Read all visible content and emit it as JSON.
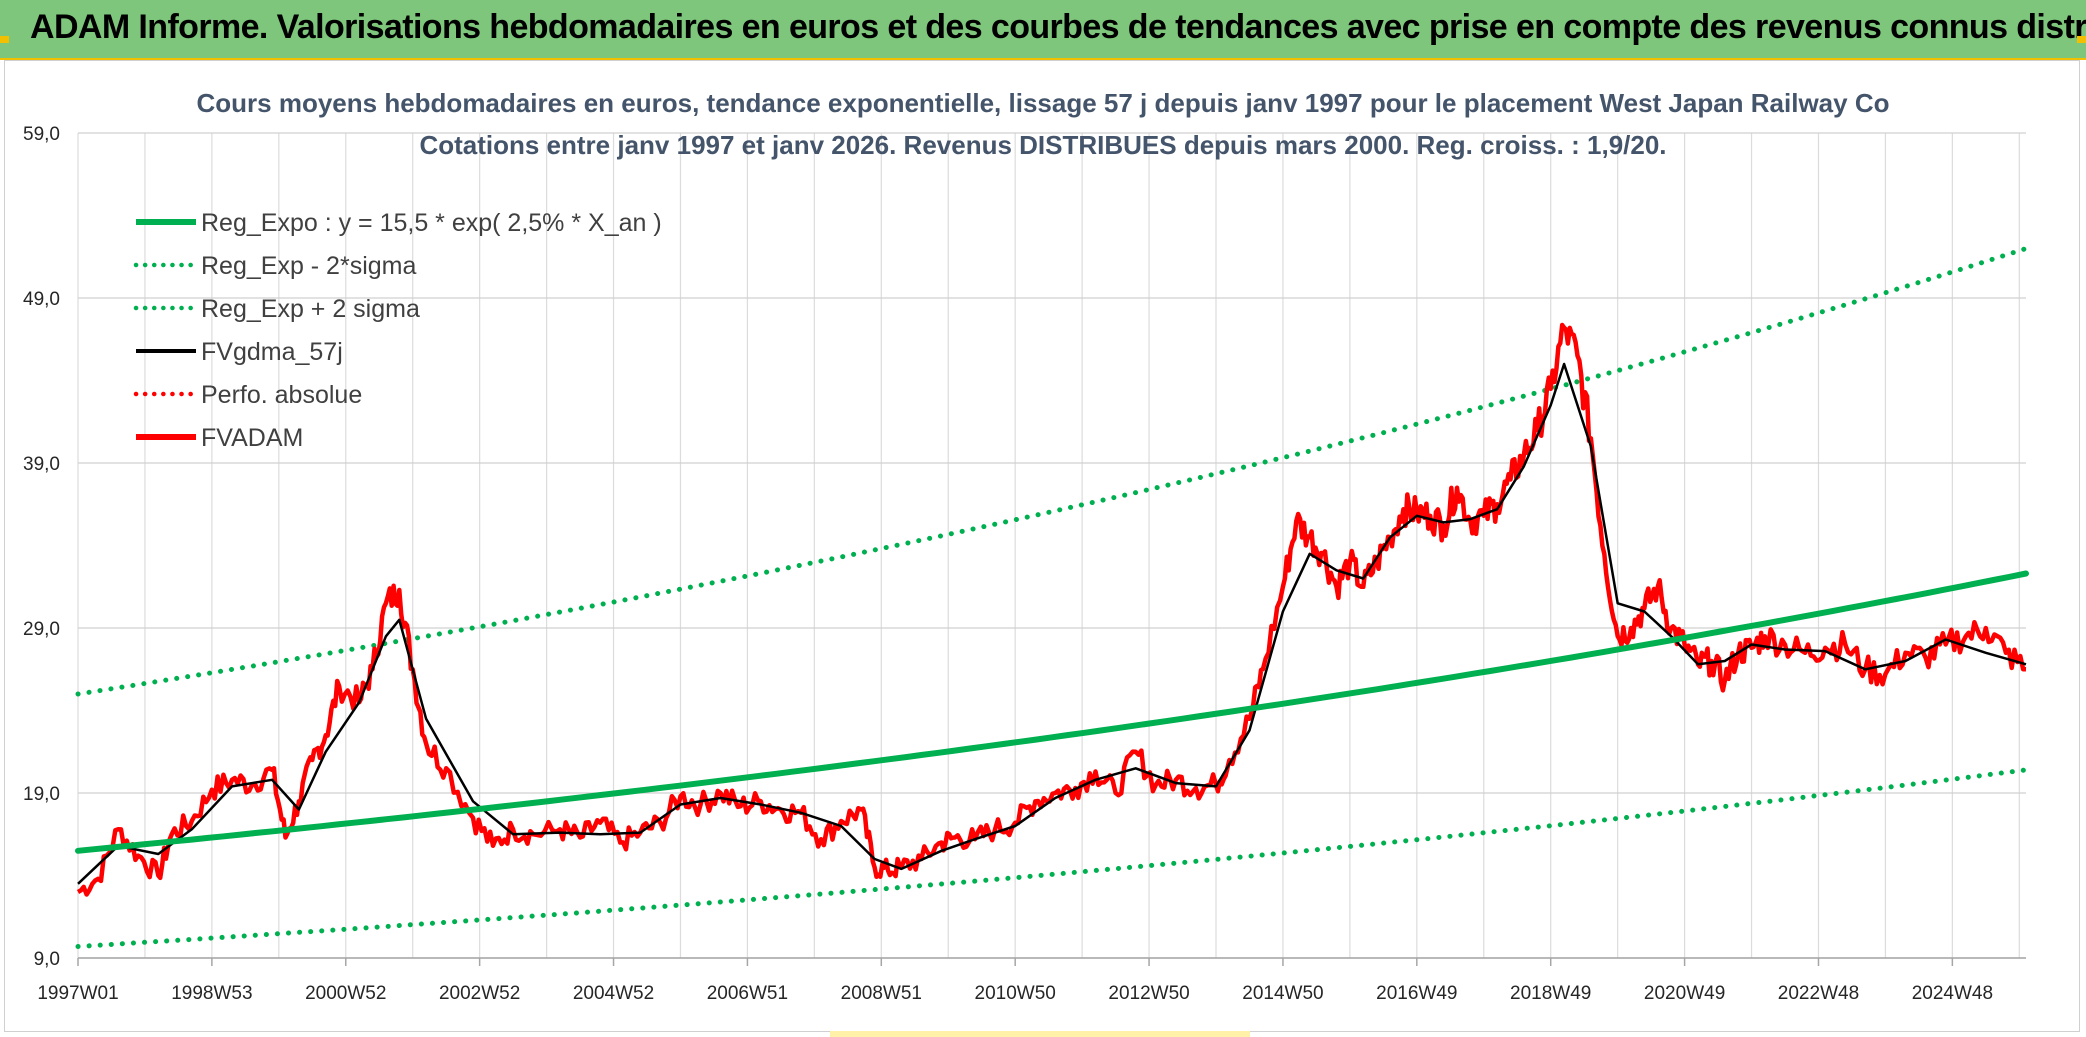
{
  "header": {
    "title": "ADAM Informe. Valorisations hebdomadaires en euros et des courbes de tendances avec prise en compte des revenus connus distribués"
  },
  "colors": {
    "header_bg": "#7dc67b",
    "accent": "#f2c000",
    "trend": "#00b050",
    "smooth": "#000000",
    "price": "#ff0000",
    "grid": "#d9d9d9"
  },
  "chart_data": {
    "type": "line",
    "title_line1": "Cours moyens hebdomadaires en euros, tendance exponentielle, lissage 57 j depuis janv 1997 pour le placement West Japan Railway Co",
    "title_line2": "Cotations entre janv 1997 et janv 2026. Revenus DISTRIBUES depuis mars 2000. Reg. croiss. : 1,9/20.",
    "y_ticks": [
      "9,0",
      "19,0",
      "29,0",
      "39,0",
      "49,0",
      "59,0"
    ],
    "ylim": [
      9,
      59
    ],
    "xlim": [
      1997.0,
      2026.1
    ],
    "x_ticks": [
      {
        "label": "1997W01",
        "year": 1997.0
      },
      {
        "label": "1998W53",
        "year": 1999.0
      },
      {
        "label": "2000W52",
        "year": 2001.0
      },
      {
        "label": "2002W52",
        "year": 2003.0
      },
      {
        "label": "2004W52",
        "year": 2005.0
      },
      {
        "label": "2006W51",
        "year": 2007.0
      },
      {
        "label": "2008W51",
        "year": 2009.0
      },
      {
        "label": "2010W50",
        "year": 2011.0
      },
      {
        "label": "2012W50",
        "year": 2013.0
      },
      {
        "label": "2014W50",
        "year": 2015.0
      },
      {
        "label": "2016W49",
        "year": 2017.0
      },
      {
        "label": "2018W49",
        "year": 2019.0
      },
      {
        "label": "2020W49",
        "year": 2021.0
      },
      {
        "label": "2022W48",
        "year": 2023.0
      },
      {
        "label": "2024W48",
        "year": 2025.0
      }
    ],
    "legend": [
      {
        "label": "Reg_Expo : y = 15,5 * exp( 2,5% *  X_an )",
        "color": "#00b050",
        "style": "solid-thick"
      },
      {
        "label": "Reg_Exp - 2*sigma",
        "color": "#00b050",
        "style": "dotted"
      },
      {
        "label": "Reg_Exp + 2 sigma",
        "color": "#00b050",
        "style": "dotted"
      },
      {
        "label": "FVgdma_57j",
        "color": "#000000",
        "style": "solid"
      },
      {
        "label": "Perfo. absolue",
        "color": "#ff0000",
        "style": "dotted"
      },
      {
        "label": "FVADAM",
        "color": "#ff0000",
        "style": "solid-thick"
      }
    ],
    "series": [
      {
        "name": "Reg_Expo : y = 15,5 * exp( 2,5% *  X_an )",
        "x": [
          1997.0,
          2026.1
        ],
        "y": [
          15.5,
          32.3
        ]
      },
      {
        "name": "Reg_Exp - 2*sigma",
        "x": [
          1997.0,
          2026.1
        ],
        "y": [
          9.7,
          20.4
        ]
      },
      {
        "name": "Reg_Exp + 2 sigma",
        "x": [
          1997.0,
          2026.1
        ],
        "y": [
          25.0,
          52.0
        ]
      },
      {
        "name": "FVADAM",
        "x": [
          1997.0,
          1997.3,
          1997.6,
          1997.9,
          1998.2,
          1998.4,
          1998.7,
          1999.0,
          1999.3,
          1999.6,
          1999.9,
          2000.1,
          2000.3,
          2000.5,
          2000.7,
          2000.9,
          2001.2,
          2001.4,
          2001.6,
          2001.8,
          2002.0,
          2002.2,
          2002.5,
          2002.9,
          2003.2,
          2003.5,
          2003.8,
          2004.2,
          2004.5,
          2004.8,
          2005.1,
          2005.4,
          2005.7,
          2006.0,
          2006.3,
          2006.6,
          2006.9,
          2007.2,
          2007.5,
          2007.8,
          2008.1,
          2008.4,
          2008.7,
          2008.9,
          2009.1,
          2009.3,
          2009.6,
          2009.9,
          2010.1,
          2010.4,
          2010.7,
          2011.0,
          2011.3,
          2011.6,
          2011.9,
          2012.2,
          2012.5,
          2012.8,
          2013.1,
          2013.4,
          2013.7,
          2014.0,
          2014.2,
          2014.5,
          2014.7,
          2015.0,
          2015.2,
          2015.4,
          2015.6,
          2015.8,
          2016.0,
          2016.2,
          2016.4,
          2016.6,
          2016.8,
          2017.0,
          2017.2,
          2017.4,
          2017.6,
          2017.8,
          2018.0,
          2018.2,
          2018.4,
          2018.6,
          2018.8,
          2019.0,
          2019.2,
          2019.4,
          2019.6,
          2019.8,
          2020.0,
          2020.2,
          2020.4,
          2020.6,
          2020.8,
          2021.0,
          2021.2,
          2021.4,
          2021.6,
          2021.8,
          2022.0,
          2022.2,
          2022.5,
          2022.8,
          2023.1,
          2023.4,
          2023.7,
          2024.0,
          2024.3,
          2024.6,
          2024.9,
          2025.2,
          2025.5,
          2025.8,
          2026.1
        ],
        "y": [
          13.0,
          13.8,
          16.8,
          15.2,
          14.0,
          16.5,
          17.3,
          19.2,
          19.8,
          19.5,
          20.4,
          16.3,
          18.5,
          21.0,
          22.5,
          25.5,
          24.5,
          26.5,
          30.5,
          31.3,
          26.5,
          22.0,
          20.5,
          17.5,
          15.8,
          16.8,
          16.5,
          16.8,
          16.3,
          17.2,
          16.0,
          16.6,
          17.2,
          18.8,
          18.3,
          19.0,
          18.2,
          18.5,
          18.0,
          17.8,
          16.2,
          17.3,
          18.0,
          14.5,
          14.3,
          14.5,
          15.0,
          16.0,
          16.3,
          16.2,
          16.8,
          17.2,
          18.5,
          19.0,
          19.3,
          20.3,
          19.0,
          21.5,
          19.5,
          19.8,
          19.3,
          19.5,
          21.0,
          23.5,
          26.5,
          31.5,
          35.5,
          34.5,
          33.5,
          31.5,
          33.0,
          31.5,
          33.0,
          34.5,
          36.2,
          36.0,
          35.8,
          35.2,
          37.5,
          35.5,
          35.8,
          36.5,
          38.0,
          39.5,
          41.0,
          43.5,
          47.2,
          45.5,
          40.5,
          33.5,
          28.5,
          29.0,
          30.2,
          31.5,
          29.0,
          28.0,
          26.8,
          27.0,
          25.8,
          27.5,
          27.8,
          28.5,
          28.0,
          27.5,
          27.8,
          28.0,
          26.5,
          26.2,
          27.5,
          27.2,
          28.0,
          28.5,
          29.0,
          27.5,
          26.5
        ]
      },
      {
        "name": "FVgdma_57j",
        "x": [
          1997.0,
          1997.6,
          1998.2,
          1998.7,
          1999.3,
          1999.9,
          2000.3,
          2000.7,
          2001.2,
          2001.6,
          2001.8,
          2002.2,
          2002.9,
          2003.5,
          2004.2,
          2004.8,
          2005.4,
          2006.0,
          2006.6,
          2007.2,
          2007.8,
          2008.4,
          2008.9,
          2009.3,
          2009.9,
          2010.4,
          2011.0,
          2011.6,
          2012.2,
          2012.8,
          2013.4,
          2014.0,
          2014.5,
          2015.0,
          2015.4,
          2015.8,
          2016.2,
          2016.6,
          2017.0,
          2017.4,
          2017.8,
          2018.2,
          2018.6,
          2019.0,
          2019.2,
          2019.6,
          2020.0,
          2020.4,
          2020.8,
          2021.2,
          2021.6,
          2022.0,
          2022.5,
          2023.1,
          2023.7,
          2024.3,
          2024.9,
          2025.5,
          2026.1
        ],
        "y": [
          13.5,
          15.8,
          15.3,
          16.8,
          19.4,
          19.8,
          18.0,
          21.5,
          24.5,
          28.5,
          29.5,
          23.5,
          18.5,
          16.5,
          16.6,
          16.5,
          16.6,
          18.3,
          18.7,
          18.3,
          17.8,
          17.0,
          15.0,
          14.4,
          15.5,
          16.2,
          17.0,
          18.7,
          19.8,
          20.5,
          19.6,
          19.4,
          22.8,
          30.0,
          33.5,
          32.5,
          32.0,
          34.5,
          35.8,
          35.4,
          35.6,
          36.2,
          38.8,
          42.5,
          45.0,
          40.0,
          30.5,
          30.0,
          28.5,
          26.8,
          27.0,
          28.0,
          27.7,
          27.6,
          26.5,
          27.0,
          28.3,
          27.5,
          26.8
        ]
      }
    ]
  }
}
